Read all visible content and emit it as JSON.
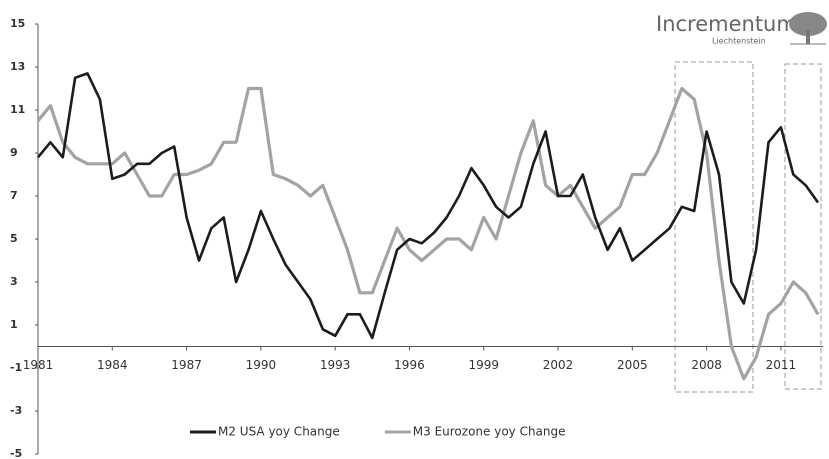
{
  "chart_data": {
    "type": "line",
    "x": [
      1981,
      1981.5,
      1982,
      1982.5,
      1983,
      1983.5,
      1984,
      1984.5,
      1985,
      1985.5,
      1986,
      1986.5,
      1987,
      1987.5,
      1988,
      1988.5,
      1989,
      1989.5,
      1990,
      1990.5,
      1991,
      1991.5,
      1992,
      1992.5,
      1993,
      1993.5,
      1994,
      1994.5,
      1995,
      1995.5,
      1996,
      1996.5,
      1997,
      1997.5,
      1998,
      1998.5,
      1999,
      1999.5,
      2000,
      2000.5,
      2001,
      2001.5,
      2002,
      2002.5,
      2003,
      2003.5,
      2004,
      2004.5,
      2005,
      2005.5,
      2006,
      2006.5,
      2007,
      2007.5,
      2008,
      2008.5,
      2009,
      2009.5,
      2010,
      2010.5,
      2011,
      2011.5,
      2012,
      2012.5
    ],
    "series": [
      {
        "name": "M2 USA yoy Change",
        "color": "#1c1c1c",
        "values": [
          8.8,
          9.5,
          8.8,
          12.5,
          12.7,
          11.5,
          7.8,
          8.0,
          8.5,
          8.5,
          9.0,
          9.3,
          6.0,
          4.0,
          5.5,
          6.0,
          3.0,
          4.5,
          6.3,
          5.0,
          3.8,
          3.0,
          2.2,
          0.8,
          0.5,
          1.5,
          1.5,
          0.4,
          2.5,
          4.5,
          5.0,
          4.8,
          5.3,
          6.0,
          7.0,
          8.3,
          7.5,
          6.5,
          6.0,
          6.5,
          8.5,
          10.0,
          7.0,
          7.0,
          8.0,
          6.0,
          4.5,
          5.5,
          4.0,
          4.5,
          5.0,
          5.5,
          6.5,
          6.3,
          10.0,
          8.0,
          3.0,
          2.0,
          4.5,
          9.5,
          10.2,
          8.0,
          7.5,
          6.7
        ]
      },
      {
        "name": "M3 Eurozone yoy Change",
        "color": "#a3a3a3",
        "values": [
          10.5,
          11.2,
          9.5,
          8.8,
          8.5,
          8.5,
          8.5,
          9.0,
          8.0,
          7.0,
          7.0,
          8.0,
          8.0,
          8.2,
          8.5,
          9.5,
          9.5,
          12.0,
          12.0,
          8.0,
          7.8,
          7.5,
          7.0,
          7.5,
          6.0,
          4.5,
          2.5,
          2.5,
          4.0,
          5.5,
          4.5,
          4.0,
          4.5,
          5.0,
          5.0,
          4.5,
          6.0,
          5.0,
          7.0,
          9.0,
          10.5,
          7.5,
          7.0,
          7.5,
          6.5,
          5.5,
          6.0,
          6.5,
          8.0,
          8.0,
          9.0,
          10.5,
          12.0,
          11.5,
          9.0,
          4.0,
          0.0,
          -1.5,
          -0.5,
          1.5,
          2.0,
          3.0,
          2.5,
          1.5
        ]
      }
    ],
    "xlim": [
      1981,
      2012.7
    ],
    "xticks": [
      1981,
      1984,
      1987,
      1990,
      1993,
      1996,
      1999,
      2002,
      2005,
      2008,
      2011
    ],
    "ylim": [
      -5,
      15
    ],
    "yticks": [
      -5,
      -3,
      -1,
      1,
      3,
      5,
      7,
      9,
      11,
      13,
      15
    ],
    "grid": false,
    "legend": "bottom"
  },
  "logo": {
    "name": "Incrementum",
    "subtitle": "Liechtenstein"
  }
}
